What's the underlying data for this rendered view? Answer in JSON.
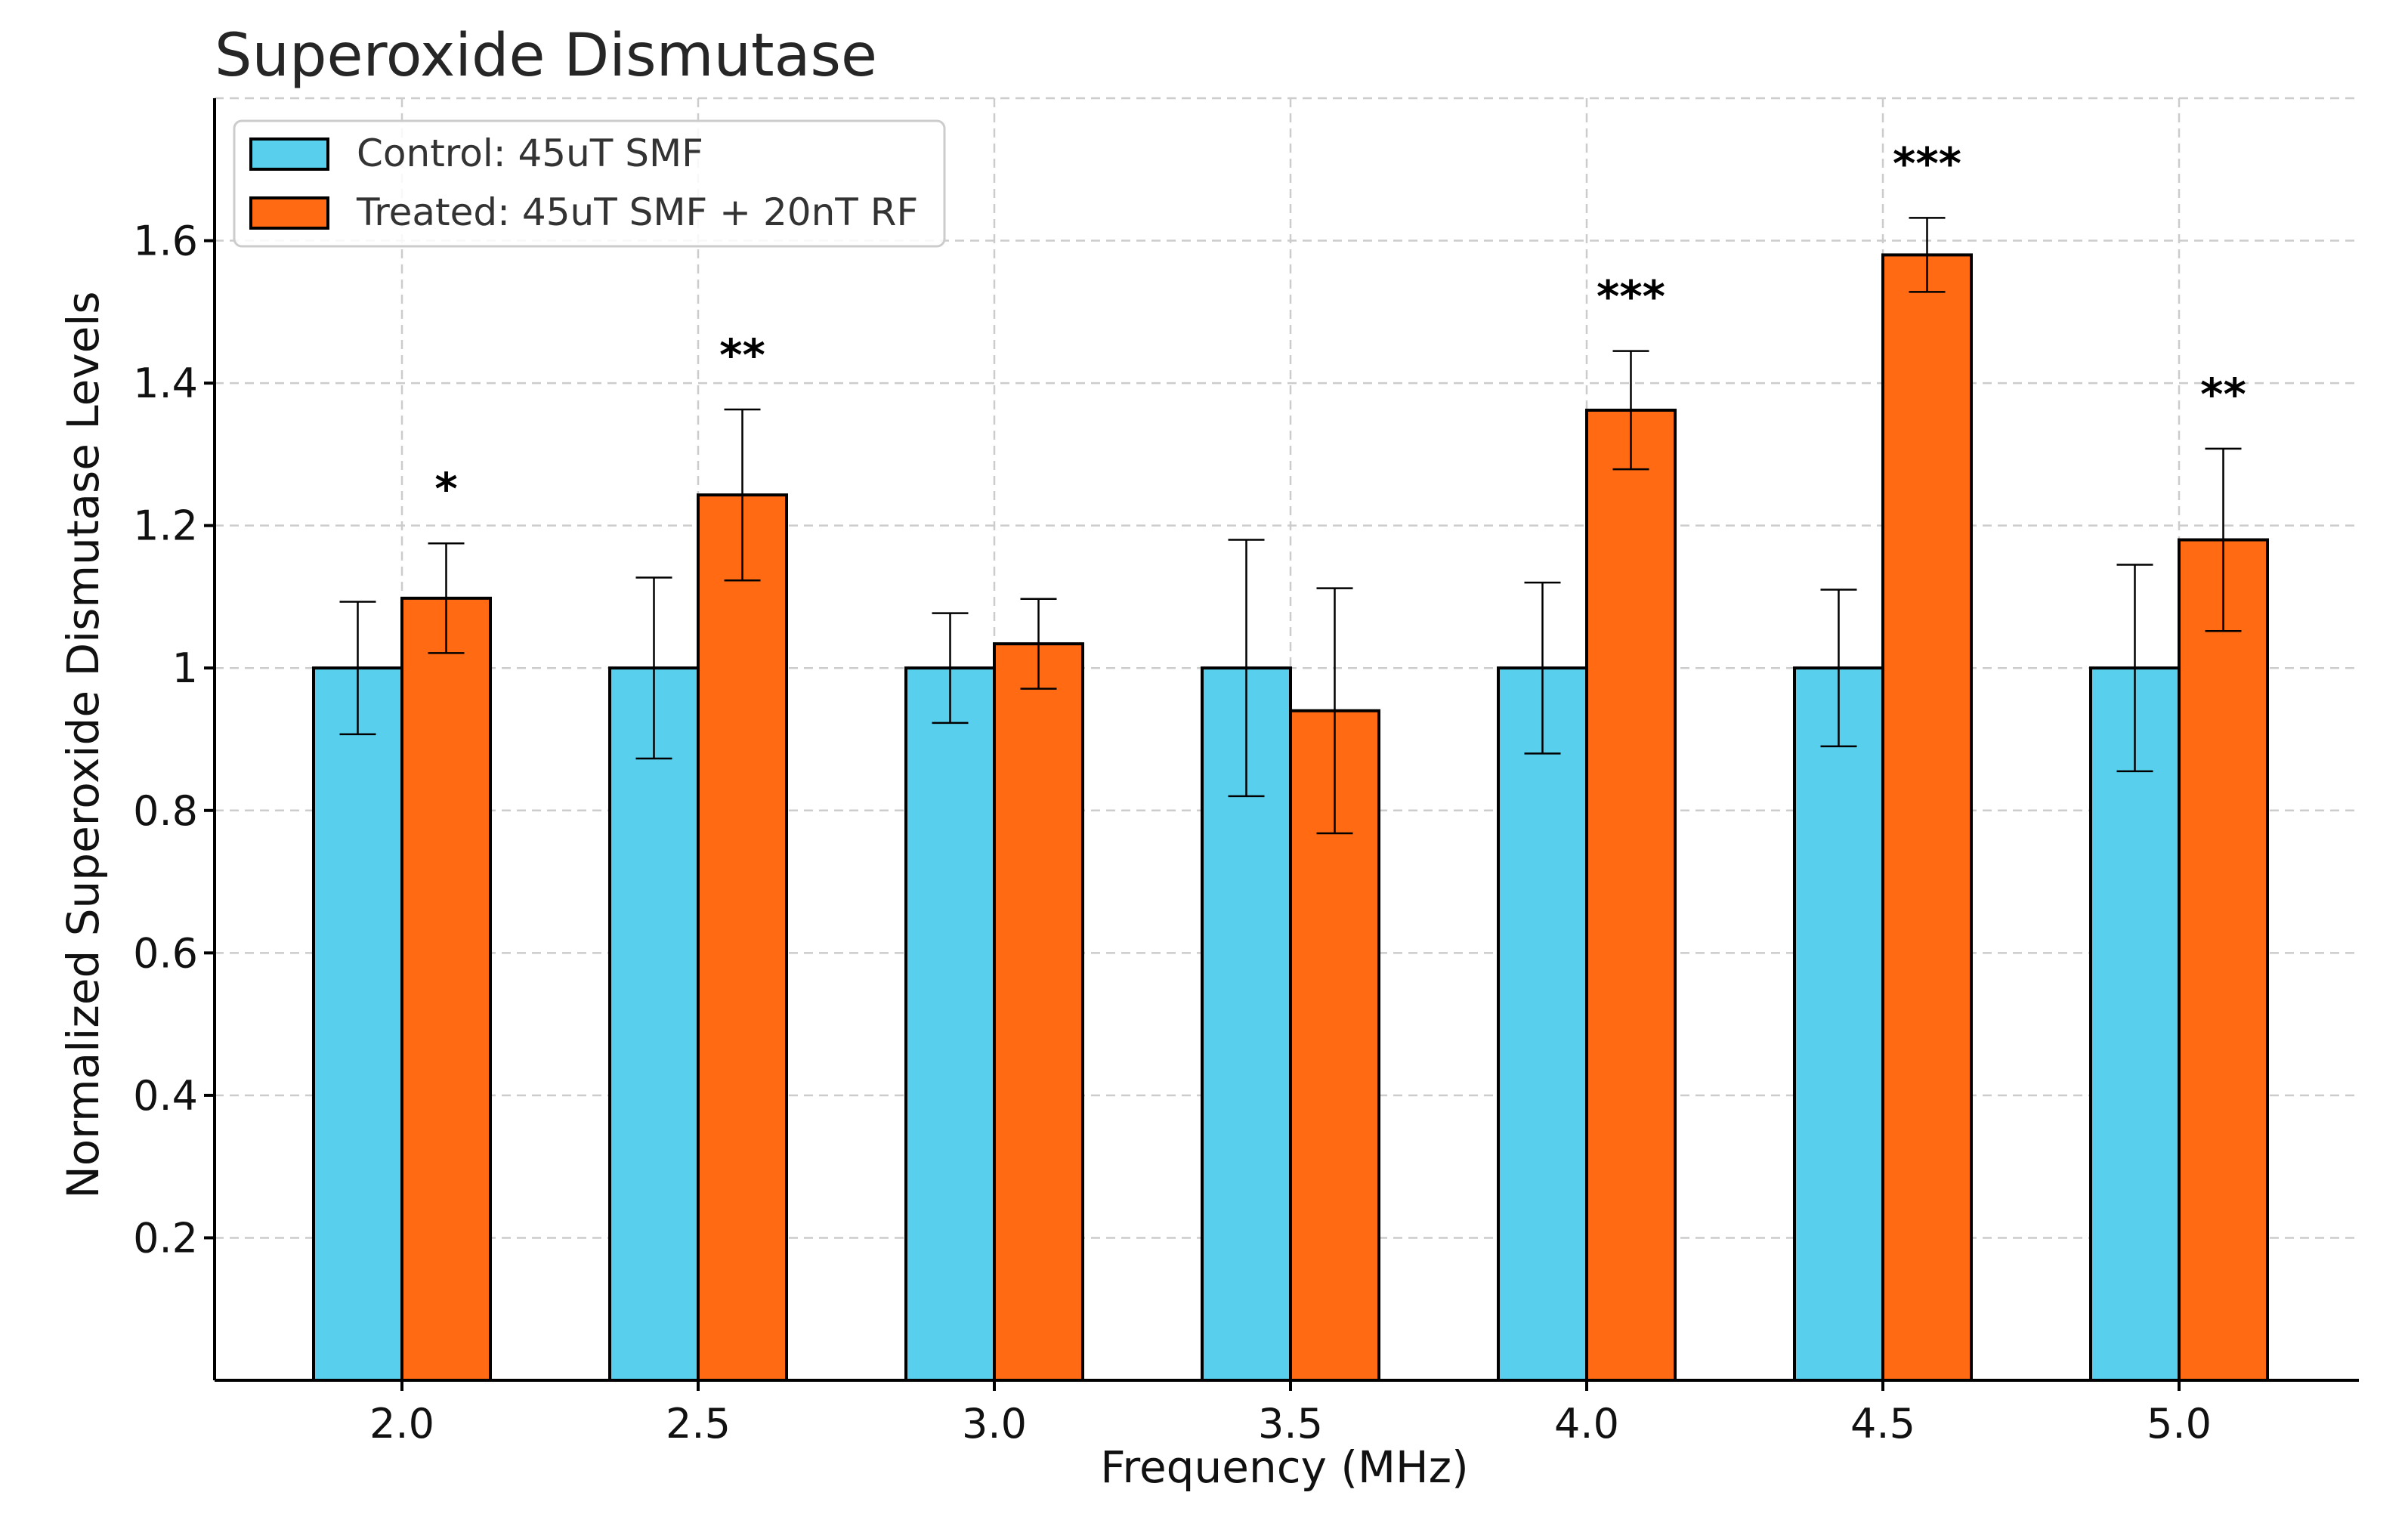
{
  "chart_data": {
    "type": "bar",
    "title": "Superoxide Dismutase",
    "xlabel": "Frequency (MHz)",
    "ylabel": "Normalized Superoxide Dismutase Levels",
    "ylim": [
      0,
      1.8
    ],
    "yticks": [
      {
        "value": 0.2,
        "label": "0.2"
      },
      {
        "value": 0.4,
        "label": "0.4"
      },
      {
        "value": 0.6,
        "label": "0.6"
      },
      {
        "value": 0.8,
        "label": "0.8"
      },
      {
        "value": 1.0,
        "label": "1"
      },
      {
        "value": 1.2,
        "label": "1.2"
      },
      {
        "value": 1.4,
        "label": "1.4"
      },
      {
        "value": 1.6,
        "label": "1.6"
      }
    ],
    "categories": [
      "2.0",
      "2.5",
      "3.0",
      "3.5",
      "4.0",
      "4.5",
      "5.0"
    ],
    "grid": true,
    "legend_position": "top-left",
    "series": [
      {
        "name": "Control: 45uT SMF",
        "color": "#58CFEC",
        "values": [
          1.0,
          1.0,
          1.0,
          1.0,
          1.0,
          1.0,
          1.0
        ],
        "errors": [
          0.093,
          0.127,
          0.077,
          0.18,
          0.12,
          0.11,
          0.145
        ]
      },
      {
        "name": "Treated: 45uT SMF + 20nT RF",
        "color": "#FF6A13",
        "values": [
          1.098,
          1.243,
          1.034,
          0.94,
          1.362,
          1.58,
          1.18
        ],
        "errors": [
          0.077,
          0.12,
          0.063,
          0.172,
          0.083,
          0.052,
          0.128
        ]
      }
    ],
    "significance": [
      "*",
      "**",
      "",
      "",
      "***",
      "***",
      "**"
    ]
  }
}
